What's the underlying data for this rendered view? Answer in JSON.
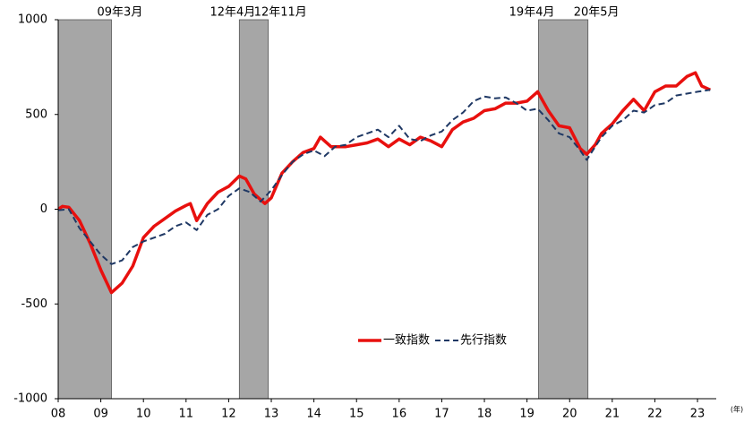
{
  "chart_data": {
    "type": "line",
    "xlim": [
      2008,
      2023.44
    ],
    "xticks": [
      {
        "value": 2008,
        "label": "08"
      },
      {
        "value": 2009,
        "label": "09"
      },
      {
        "value": 2010,
        "label": "10"
      },
      {
        "value": 2011,
        "label": "11"
      },
      {
        "value": 2012,
        "label": "12"
      },
      {
        "value": 2013,
        "label": "13"
      },
      {
        "value": 2014,
        "label": "14"
      },
      {
        "value": 2015,
        "label": "15"
      },
      {
        "value": 2016,
        "label": "16"
      },
      {
        "value": 2017,
        "label": "17"
      },
      {
        "value": 2018,
        "label": "18"
      },
      {
        "value": 2019,
        "label": "19"
      },
      {
        "value": 2020,
        "label": "20"
      },
      {
        "value": 2021,
        "label": "21"
      },
      {
        "value": 2022,
        "label": "22"
      },
      {
        "value": 2023,
        "label": "23"
      }
    ],
    "x_unit_label": "(年)",
    "ylim": [
      -1000,
      1000
    ],
    "yticks": [
      -1000,
      -500,
      0,
      500,
      1000
    ],
    "shaded_periods": [
      {
        "start": 2008.0,
        "end": 2009.25,
        "end_label": "09年3月"
      },
      {
        "start": 2012.25,
        "end": 2012.93,
        "start_label": "12年4月",
        "end_label": "12年11月"
      },
      {
        "start": 2019.27,
        "end": 2020.43,
        "start_label": "19年4月",
        "end_label": "20年5月"
      }
    ],
    "shade_color": "#a6a6a6",
    "series": [
      {
        "name": "一致指数",
        "color": "#e8100e",
        "dashed": false,
        "x": [
          2008.0,
          2008.1,
          2008.25,
          2008.5,
          2008.75,
          2009.0,
          2009.25,
          2009.5,
          2009.75,
          2010.0,
          2010.25,
          2010.5,
          2010.75,
          2011.0,
          2011.1,
          2011.25,
          2011.5,
          2011.75,
          2012.0,
          2012.25,
          2012.4,
          2012.6,
          2012.85,
          2013.0,
          2013.25,
          2013.5,
          2013.75,
          2014.0,
          2014.15,
          2014.4,
          2014.75,
          2015.0,
          2015.25,
          2015.5,
          2015.75,
          2016.0,
          2016.25,
          2016.5,
          2016.75,
          2017.0,
          2017.25,
          2017.5,
          2017.75,
          2018.0,
          2018.25,
          2018.5,
          2018.75,
          2019.0,
          2019.25,
          2019.5,
          2019.75,
          2020.0,
          2020.25,
          2020.4,
          2020.6,
          2020.75,
          2021.0,
          2021.25,
          2021.5,
          2021.75,
          2022.0,
          2022.25,
          2022.5,
          2022.75,
          2022.95,
          2023.1,
          2023.3
        ],
        "values": [
          0,
          15,
          10,
          -60,
          -180,
          -320,
          -440,
          -390,
          -300,
          -150,
          -90,
          -50,
          -10,
          20,
          30,
          -60,
          30,
          90,
          120,
          175,
          160,
          80,
          30,
          60,
          190,
          250,
          300,
          320,
          380,
          330,
          330,
          340,
          350,
          370,
          330,
          370,
          340,
          380,
          360,
          330,
          420,
          460,
          480,
          520,
          530,
          560,
          560,
          570,
          620,
          520,
          440,
          430,
          320,
          290,
          340,
          400,
          450,
          520,
          580,
          520,
          620,
          650,
          650,
          700,
          720,
          650,
          630
        ]
      },
      {
        "name": "先行指数",
        "color": "#1f3864",
        "dashed": true,
        "x": [
          2008.0,
          2008.25,
          2008.5,
          2008.75,
          2009.0,
          2009.25,
          2009.5,
          2009.75,
          2010.0,
          2010.5,
          2010.75,
          2011.0,
          2011.25,
          2011.5,
          2011.75,
          2012.0,
          2012.25,
          2012.5,
          2012.75,
          2013.0,
          2013.25,
          2013.5,
          2013.75,
          2014.0,
          2014.25,
          2014.5,
          2014.75,
          2015.0,
          2015.25,
          2015.5,
          2015.75,
          2016.0,
          2016.25,
          2016.5,
          2016.75,
          2017.0,
          2017.25,
          2017.5,
          2017.75,
          2018.0,
          2018.25,
          2018.5,
          2018.75,
          2019.0,
          2019.25,
          2019.5,
          2019.75,
          2020.0,
          2020.25,
          2020.4,
          2020.6,
          2020.75,
          2021.0,
          2021.25,
          2021.5,
          2021.75,
          2022.0,
          2022.25,
          2022.5,
          2022.75,
          2023.0,
          2023.3
        ],
        "values": [
          -5,
          0,
          -100,
          -170,
          -240,
          -290,
          -270,
          -200,
          -170,
          -130,
          -90,
          -70,
          -110,
          -30,
          0,
          70,
          110,
          90,
          40,
          100,
          180,
          250,
          290,
          310,
          280,
          330,
          340,
          380,
          400,
          420,
          380,
          440,
          370,
          360,
          390,
          410,
          470,
          510,
          570,
          595,
          585,
          590,
          560,
          520,
          530,
          470,
          400,
          380,
          310,
          260,
          330,
          380,
          440,
          470,
          520,
          510,
          550,
          560,
          600,
          610,
          620,
          630
        ]
      }
    ]
  }
}
